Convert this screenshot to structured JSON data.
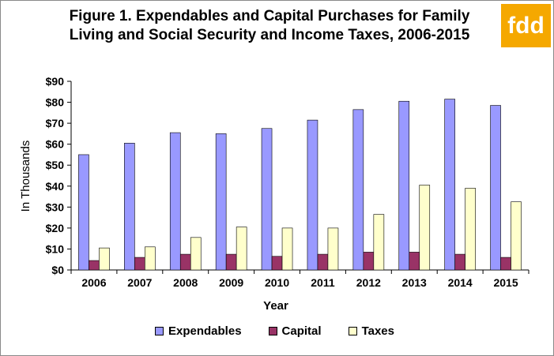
{
  "title_line1": "Figure 1. Expendables and Capital Purchases for Family",
  "title_line2": "Living and Social Security and Income Taxes, 2006-2015",
  "logo_text": "fdd",
  "colors": {
    "logo_bg": "#f5a800",
    "logo_text": "#ffffff"
  },
  "chart_data": {
    "type": "bar",
    "categories": [
      "2006",
      "2007",
      "2008",
      "2009",
      "2010",
      "2011",
      "2012",
      "2013",
      "2014",
      "2015"
    ],
    "series": [
      {
        "name": "Expendables",
        "color": "#9999ff",
        "values": [
          55,
          60.5,
          65.5,
          65,
          67.5,
          71.5,
          76.5,
          80.5,
          81.5,
          78.5
        ]
      },
      {
        "name": "Capital",
        "color": "#993366",
        "values": [
          4.5,
          6,
          7.5,
          7.5,
          6.5,
          7.5,
          8.5,
          8.5,
          7.5,
          6
        ]
      },
      {
        "name": "Taxes",
        "color": "#ffffcc",
        "values": [
          10.5,
          11,
          15.5,
          20.5,
          20,
          20,
          26.5,
          40.5,
          39,
          32.5
        ]
      }
    ],
    "title": "Figure 1. Expendables and Capital Purchases for Family Living and Social Security and Income Taxes, 2006-2015",
    "xlabel": "Year",
    "ylabel": "In Thousands",
    "ylim": [
      0,
      90
    ],
    "yticks": [
      "$0",
      "$10",
      "$20",
      "$30",
      "$40",
      "$50",
      "$60",
      "$70",
      "$80",
      "$90"
    ],
    "grid": false,
    "legend_position": "bottom"
  }
}
